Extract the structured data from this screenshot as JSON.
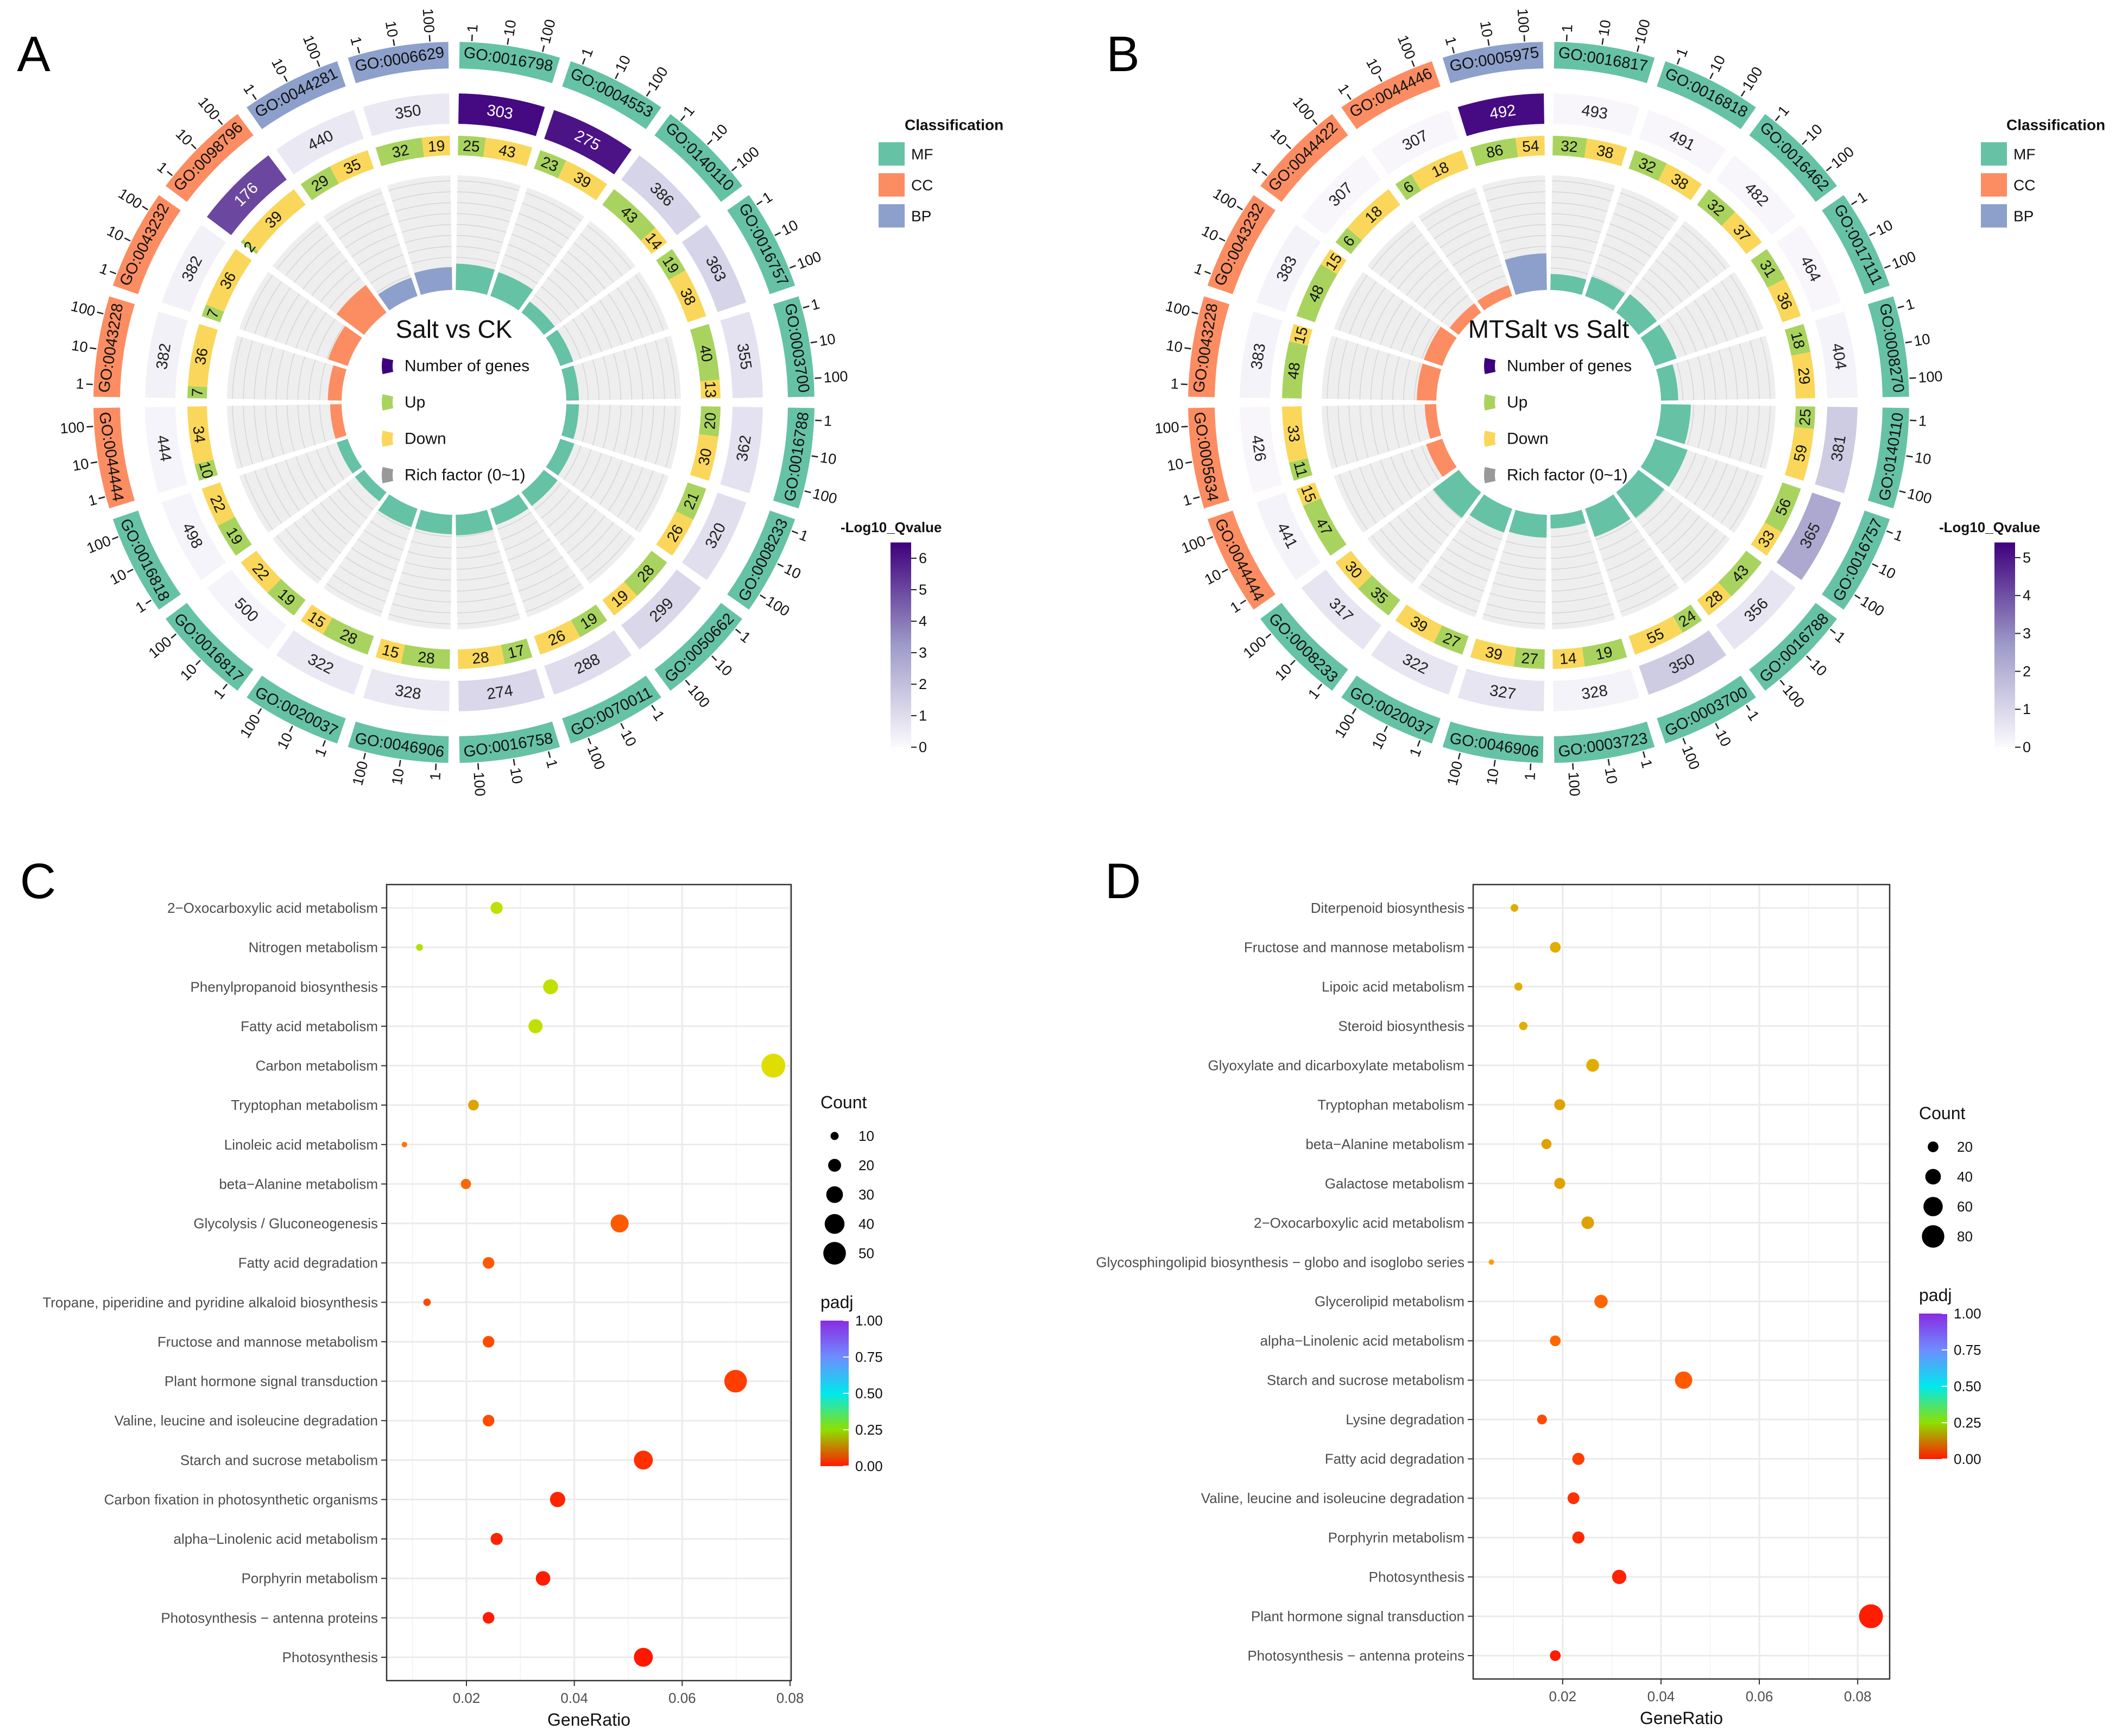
{
  "panel_labels": [
    "A",
    "B",
    "C",
    "D"
  ],
  "colors": {
    "MF": "#66c2a5",
    "CC": "#fc8d62",
    "BP": "#8da0cb",
    "up": "#a9d35f",
    "down": "#fad75a",
    "track": "#eeeeee",
    "qvalue_low": "#fbfafd",
    "qvalue_mid": "#9e9ac8",
    "qvalue_high": "#3f007d"
  },
  "circos_legend": {
    "number_of_genes": "Number of genes",
    "up": "Up",
    "down": "Down",
    "rich_factor": "Rich factor (0~1)"
  },
  "classification_legend": {
    "title": "Classification",
    "items": [
      "MF",
      "CC",
      "BP"
    ]
  },
  "go_axis_ticks": [
    "1",
    "10",
    "100"
  ],
  "circos": [
    {
      "title": "Salt vs CK",
      "qvalue_legend": {
        "title": "-Log10_Qvalue",
        "ticks": [
          "6",
          "5",
          "4",
          "3",
          "2",
          "1",
          "0"
        ],
        "range": [
          0,
          6.5
        ]
      },
      "terms": [
        {
          "id": "GO:0016798",
          "class": "MF",
          "genes": "303",
          "up": "25",
          "down": "43",
          "rich_factor": 0.23,
          "neg_log10_q": 6.3
        },
        {
          "id": "GO:0004553",
          "class": "MF",
          "genes": "275",
          "up": "23",
          "down": "39",
          "rich_factor": 0.22,
          "neg_log10_q": 6.1
        },
        {
          "id": "GO:0140110",
          "class": "MF",
          "genes": "386",
          "up": "43",
          "down": "14",
          "rich_factor": 0.12,
          "neg_log10_q": 1.3
        },
        {
          "id": "GO:0016757",
          "class": "MF",
          "genes": "363",
          "up": "19",
          "down": "38",
          "rich_factor": 0.12,
          "neg_log10_q": 1.3
        },
        {
          "id": "GO:0003700",
          "class": "MF",
          "genes": "355",
          "up": "40",
          "down": "13",
          "rich_factor": 0.11,
          "neg_log10_q": 0.8
        },
        {
          "id": "GO:0016788",
          "class": "MF",
          "genes": "362",
          "up": "20",
          "down": "30",
          "rich_factor": 0.11,
          "neg_log10_q": 0.8
        },
        {
          "id": "GO:0008233",
          "class": "MF",
          "genes": "320",
          "up": "21",
          "down": "26",
          "rich_factor": 0.13,
          "neg_log10_q": 0.9
        },
        {
          "id": "GO:0050662",
          "class": "MF",
          "genes": "299",
          "up": "28",
          "down": "19",
          "rich_factor": 0.15,
          "neg_log10_q": 1.2
        },
        {
          "id": "GO:0070011",
          "class": "MF",
          "genes": "288",
          "up": "19",
          "down": "26",
          "rich_factor": 0.15,
          "neg_log10_q": 1.0
        },
        {
          "id": "GO:0016758",
          "class": "MF",
          "genes": "274",
          "up": "17",
          "down": "28",
          "rich_factor": 0.18,
          "neg_log10_q": 1.2
        },
        {
          "id": "GO:0046906",
          "class": "MF",
          "genes": "328",
          "up": "28",
          "down": "15",
          "rich_factor": 0.17,
          "neg_log10_q": 0.6
        },
        {
          "id": "GO:0020037",
          "class": "MF",
          "genes": "322",
          "up": "28",
          "down": "15",
          "rich_factor": 0.17,
          "neg_log10_q": 0.6
        },
        {
          "id": "GO:0016817",
          "class": "MF",
          "genes": "500",
          "up": "19",
          "down": "22",
          "rich_factor": 0.1,
          "neg_log10_q": 0.2
        },
        {
          "id": "GO:0016818",
          "class": "MF",
          "genes": "498",
          "up": "19",
          "down": "22",
          "rich_factor": 0.1,
          "neg_log10_q": 0.2
        },
        {
          "id": "GO:0044444",
          "class": "CC",
          "genes": "444",
          "up": "10",
          "down": "34",
          "rich_factor": 0.1,
          "neg_log10_q": 0.2
        },
        {
          "id": "GO:0043228",
          "class": "CC",
          "genes": "382",
          "up": "7",
          "down": "36",
          "rich_factor": 0.12,
          "neg_log10_q": 0.3
        },
        {
          "id": "GO:0043232",
          "class": "CC",
          "genes": "382",
          "up": "7",
          "down": "36",
          "rich_factor": 0.18,
          "neg_log10_q": 0.3
        },
        {
          "id": "GO:0098796",
          "class": "CC",
          "genes": "176",
          "up": "2",
          "down": "39",
          "rich_factor": 0.3,
          "neg_log10_q": 5.0
        },
        {
          "id": "GO:0044281",
          "class": "BP",
          "genes": "440",
          "up": "29",
          "down": "35",
          "rich_factor": 0.17,
          "neg_log10_q": 0.6
        },
        {
          "id": "GO:0006629",
          "class": "BP",
          "genes": "350",
          "up": "32",
          "down": "19",
          "rich_factor": 0.2,
          "neg_log10_q": 0.6
        }
      ]
    },
    {
      "title": "MTSalt vs Salt",
      "qvalue_legend": {
        "title": "-Log10_Qvalue",
        "ticks": [
          "5",
          "4",
          "3",
          "2",
          "1",
          "0"
        ],
        "range": [
          0,
          5.4
        ]
      },
      "terms": [
        {
          "id": "GO:0016817",
          "class": "MF",
          "genes": "493",
          "up": "32",
          "down": "38",
          "rich_factor": 0.14,
          "neg_log10_q": 0.1
        },
        {
          "id": "GO:0016818",
          "class": "MF",
          "genes": "491",
          "up": "32",
          "down": "38",
          "rich_factor": 0.18,
          "neg_log10_q": 0.1
        },
        {
          "id": "GO:0016462",
          "class": "MF",
          "genes": "482",
          "up": "32",
          "down": "37",
          "rich_factor": 0.2,
          "neg_log10_q": 0.1
        },
        {
          "id": "GO:0017111",
          "class": "MF",
          "genes": "464",
          "up": "31",
          "down": "36",
          "rich_factor": 0.2,
          "neg_log10_q": 0.1
        },
        {
          "id": "GO:0008270",
          "class": "MF",
          "genes": "404",
          "up": "18",
          "down": "29",
          "rich_factor": 0.15,
          "neg_log10_q": 0.2
        },
        {
          "id": "GO:0140110",
          "class": "MF",
          "genes": "381",
          "up": "25",
          "down": "59",
          "rich_factor": 0.26,
          "neg_log10_q": 1.3
        },
        {
          "id": "GO:0016757",
          "class": "MF",
          "genes": "365",
          "up": "56",
          "down": "33",
          "rich_factor": 0.3,
          "neg_log10_q": 2.3
        },
        {
          "id": "GO:0016788",
          "class": "MF",
          "genes": "356",
          "up": "43",
          "down": "28",
          "rich_factor": 0.28,
          "neg_log10_q": 0.6
        },
        {
          "id": "GO:0003700",
          "class": "MF",
          "genes": "350",
          "up": "24",
          "down": "55",
          "rich_factor": 0.26,
          "neg_log10_q": 1.3
        },
        {
          "id": "GO:0003723",
          "class": "MF",
          "genes": "328",
          "up": "19",
          "down": "14",
          "rich_factor": 0.12,
          "neg_log10_q": 0.2
        },
        {
          "id": "GO:0046906",
          "class": "MF",
          "genes": "327",
          "up": "27",
          "down": "39",
          "rich_factor": 0.2,
          "neg_log10_q": 0.6
        },
        {
          "id": "GO:0020037",
          "class": "MF",
          "genes": "322",
          "up": "27",
          "down": "39",
          "rich_factor": 0.22,
          "neg_log10_q": 0.6
        },
        {
          "id": "GO:0008233",
          "class": "MF",
          "genes": "317",
          "up": "35",
          "down": "30",
          "rich_factor": 0.28,
          "neg_log10_q": 0.6
        },
        {
          "id": "GO:0044444",
          "class": "CC",
          "genes": "441",
          "up": "47",
          "down": "15",
          "rich_factor": 0.15,
          "neg_log10_q": 0.2
        },
        {
          "id": "GO:0005634",
          "class": "CC",
          "genes": "426",
          "up": "11",
          "down": "33",
          "rich_factor": 0.1,
          "neg_log10_q": 0.1
        },
        {
          "id": "GO:0043228",
          "class": "CC",
          "genes": "383",
          "up": "48",
          "down": "15",
          "rich_factor": 0.17,
          "neg_log10_q": 0.2
        },
        {
          "id": "GO:0043232",
          "class": "CC",
          "genes": "383",
          "up": "48",
          "down": "15",
          "rich_factor": 0.17,
          "neg_log10_q": 0.2
        },
        {
          "id": "GO:0044422",
          "class": "CC",
          "genes": "307",
          "up": "6",
          "down": "18",
          "rich_factor": 0.1,
          "neg_log10_q": 0.1
        },
        {
          "id": "GO:0044446",
          "class": "CC",
          "genes": "307",
          "up": "6",
          "down": "18",
          "rich_factor": 0.1,
          "neg_log10_q": 0.1
        },
        {
          "id": "GO:0005975",
          "class": "BP",
          "genes": "492",
          "up": "86",
          "down": "54",
          "rich_factor": 0.32,
          "neg_log10_q": 5.2
        }
      ]
    }
  ],
  "chart_data": [
    {
      "type": "scatter",
      "xlabel": "GeneRatio",
      "ylabel": "",
      "xlim": [
        0.0052,
        0.0802
      ],
      "x_ticks": [
        "0.02",
        "0.04",
        "0.06",
        "0.08"
      ],
      "grid": true,
      "size_legend": {
        "title": "Count",
        "values": [
          "10",
          "20",
          "30",
          "40",
          "50"
        ]
      },
      "color_legend": {
        "title": "padj",
        "ticks": [
          "1.00",
          "0.75",
          "0.50",
          "0.25",
          "0.00"
        ],
        "range": [
          0,
          1
        ]
      },
      "categories": [
        "2−Oxocarboxylic acid metabolism",
        "Nitrogen metabolism",
        "Phenylpropanoid biosynthesis",
        "Fatty acid metabolism",
        "Carbon metabolism",
        "Tryptophan metabolism",
        "Linoleic acid metabolism",
        "beta−Alanine metabolism",
        "Glycolysis / Gluconeogenesis",
        "Fatty acid degradation",
        "Tropane, piperidine and pyridine  alkaloid biosynthesis",
        "Fructose and mannose metabolism",
        "Plant hormone signal transduction",
        "Valine, leucine and isoleucine degradation",
        "Starch and sucrose metabolism",
        "Carbon fixation in photosynthetic organisms",
        "alpha−Linolenic acid metabolism",
        "Porphyrin metabolism",
        "Photosynthesis − antenna proteins",
        "Photosynthesis"
      ],
      "gene_ratio": [
        0.0256,
        0.0113,
        0.0356,
        0.0328,
        0.0769,
        0.0213,
        0.0085,
        0.0199,
        0.0484,
        0.0241,
        0.0127,
        0.0241,
        0.0699,
        0.0241,
        0.0528,
        0.0369,
        0.0256,
        0.0342,
        0.0241,
        0.0528
      ],
      "count": [
        18,
        8,
        25,
        23,
        55,
        15,
        6,
        14,
        34,
        17,
        9,
        17,
        50,
        17,
        37,
        26,
        18,
        24,
        17,
        37
      ],
      "padj": [
        0.2,
        0.21,
        0.2,
        0.2,
        0.17,
        0.12,
        0.07,
        0.06,
        0.05,
        0.05,
        0.04,
        0.04,
        0.03,
        0.04,
        0.02,
        0.01,
        0.01,
        0.005,
        0.005,
        0.002
      ]
    },
    {
      "type": "scatter",
      "xlabel": "GeneRatio",
      "ylabel": "",
      "xlim": [
        0.0018,
        0.0865
      ],
      "x_ticks": [
        "0.02",
        "0.04",
        "0.06",
        "0.08"
      ],
      "grid": true,
      "size_legend": {
        "title": "Count",
        "values": [
          "20",
          "40",
          "60",
          "80"
        ]
      },
      "color_legend": {
        "title": "padj",
        "ticks": [
          "1.00",
          "0.75",
          "0.50",
          "0.25",
          "0.00"
        ],
        "range": [
          0,
          1
        ]
      },
      "categories": [
        "Diterpenoid biosynthesis",
        "Fructose and mannose metabolism",
        "Lipoic acid metabolism",
        "Steroid biosynthesis",
        "Glyoxylate and dicarboxylate metabolism",
        "Tryptophan metabolism",
        "beta−Alanine metabolism",
        "Galactose metabolism",
        "2−Oxocarboxylic acid metabolism",
        "Glycosphingolipid biosynthesis − globo and isoglobo series",
        "Glycerolipid metabolism",
        "alpha−Linolenic acid metabolism",
        "Starch and sucrose metabolism",
        "Lysine degradation",
        "Fatty acid degradation",
        "Valine, leucine and isoleucine degradation",
        "Porphyrin metabolism",
        "Photosynthesis",
        "Plant hormone signal transduction",
        "Photosynthesis − antenna proteins"
      ],
      "gene_ratio": [
        0.0102,
        0.0185,
        0.011,
        0.012,
        0.0261,
        0.0194,
        0.0167,
        0.0194,
        0.0251,
        0.0055,
        0.0278,
        0.0185,
        0.0446,
        0.0158,
        0.0232,
        0.0222,
        0.0232,
        0.0315,
        0.0827,
        0.0185
      ],
      "count": [
        11,
        20,
        12,
        13,
        28,
        21,
        18,
        21,
        27,
        6,
        30,
        20,
        49,
        17,
        25,
        24,
        25,
        34,
        90,
        20
      ],
      "padj": [
        0.13,
        0.13,
        0.13,
        0.13,
        0.13,
        0.12,
        0.12,
        0.12,
        0.12,
        0.1,
        0.06,
        0.06,
        0.05,
        0.04,
        0.03,
        0.02,
        0.015,
        0.01,
        0.005,
        0.005
      ]
    }
  ]
}
